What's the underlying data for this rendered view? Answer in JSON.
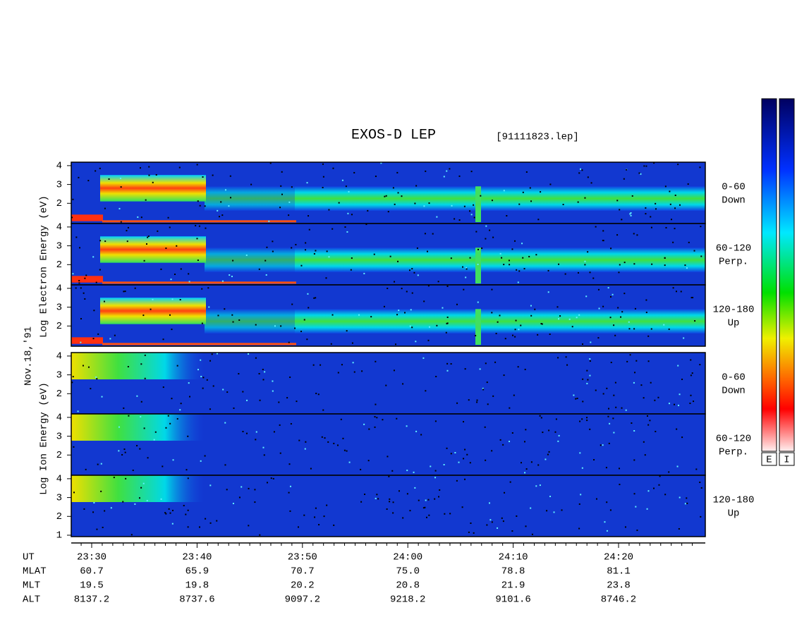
{
  "title": "EXOS-D LEP",
  "file": "[91111823.lep]",
  "date": "Nov.18,'91",
  "electron": {
    "ylabel": "Log  Electron  Energy (eV)",
    "panels": [
      {
        "angle": "0-60",
        "direction": "Down",
        "yticks": [
          2,
          3,
          4
        ]
      },
      {
        "angle": "60-120",
        "direction": "Perp.",
        "yticks": [
          2,
          3,
          4
        ]
      },
      {
        "angle": "120-180",
        "direction": "Up",
        "yticks": [
          2,
          3,
          4
        ]
      }
    ]
  },
  "ion": {
    "ylabel": "Log  Ion  Energy (eV)",
    "panels": [
      {
        "angle": "0-60",
        "direction": "Down",
        "yticks": [
          2,
          3,
          4
        ]
      },
      {
        "angle": "60-120",
        "direction": "Perp.",
        "yticks": [
          2,
          3,
          4
        ]
      },
      {
        "angle": "120-180",
        "direction": "Up",
        "yticks": [
          1,
          2,
          3,
          4
        ]
      }
    ]
  },
  "ephemeris": [
    {
      "name": "UT",
      "values": [
        "23:30",
        "23:40",
        "23:50",
        "24:00",
        "24:10",
        "24:20"
      ]
    },
    {
      "name": "MLAT",
      "values": [
        "60.7",
        "65.9",
        "70.7",
        "75.0",
        "78.8",
        "81.1"
      ]
    },
    {
      "name": "MLT",
      "values": [
        "19.5",
        "19.8",
        "20.2",
        "20.8",
        "21.9",
        "23.8"
      ]
    },
    {
      "name": "ALT",
      "values": [
        "8137.2",
        "8737.6",
        "9097.2",
        "9218.2",
        "9101.6",
        "8746.2"
      ]
    }
  ],
  "colorbars": [
    "E",
    "I"
  ]
}
